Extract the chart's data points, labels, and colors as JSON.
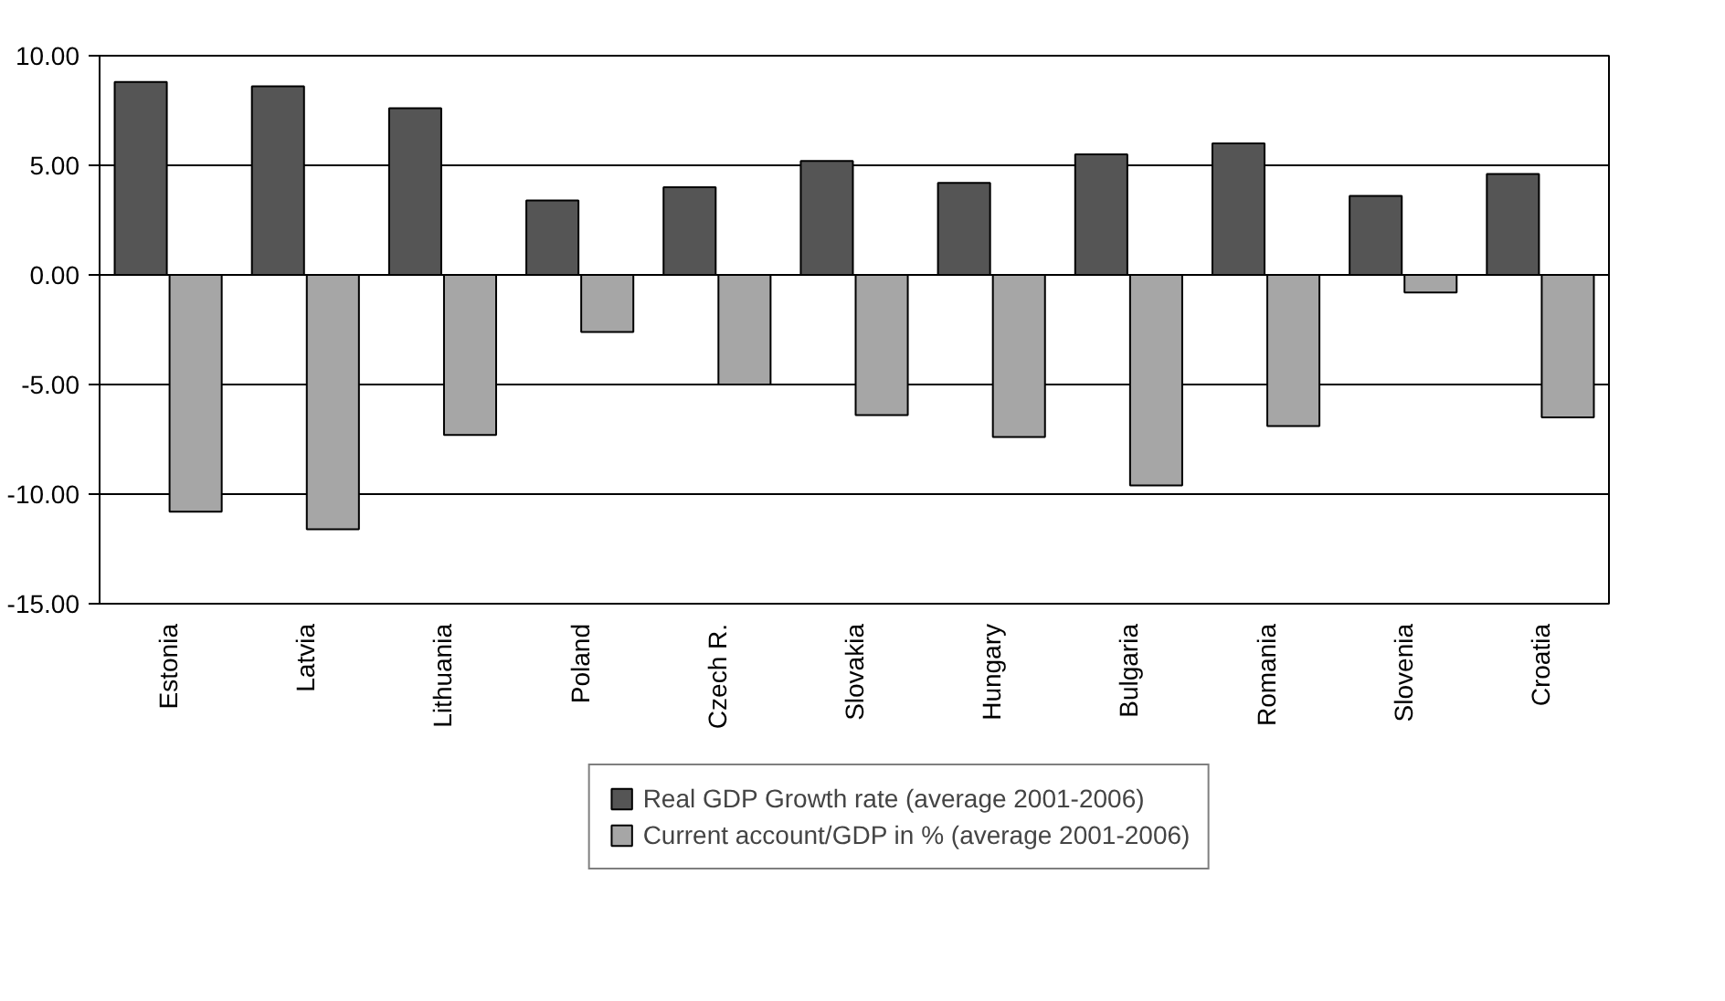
{
  "chart_data": {
    "type": "bar",
    "categories": [
      "Estonia",
      "Latvia",
      "Lithuania",
      "Poland",
      "Czech R.",
      "Slovakia",
      "Hungary",
      "Bulgaria",
      "Romania",
      "Slovenia",
      "Croatia"
    ],
    "series": [
      {
        "name": "Real GDP Growth rate (average 2001-2006)",
        "color": "#555555",
        "values": [
          8.8,
          8.6,
          7.6,
          3.4,
          4.0,
          5.2,
          4.2,
          5.5,
          6.0,
          3.6,
          4.6
        ]
      },
      {
        "name": "Current account/GDP in % (average 2001-2006)",
        "color": "#a6a6a6",
        "values": [
          -10.8,
          -11.6,
          -7.3,
          -2.6,
          -5.0,
          -6.4,
          -7.4,
          -9.6,
          -6.9,
          -0.8,
          -6.5
        ]
      }
    ],
    "ylim": [
      -15,
      10
    ],
    "yticks": [
      {
        "value": -15,
        "label": "-15.00"
      },
      {
        "value": -10,
        "label": "-10.00"
      },
      {
        "value": -5,
        "label": "-5.00"
      },
      {
        "value": 0,
        "label": "0.00"
      },
      {
        "value": 5,
        "label": "5.00"
      },
      {
        "value": 10,
        "label": "10.00"
      }
    ],
    "grid": "y",
    "legend": "bottom"
  }
}
